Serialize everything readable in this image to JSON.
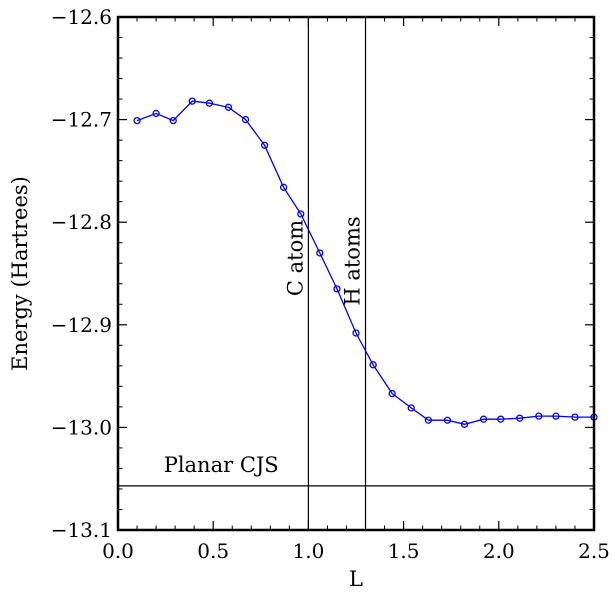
{
  "chart_data": {
    "type": "line",
    "title": "",
    "xlabel": "L",
    "ylabel": "Energy (Hartrees)",
    "xlim": [
      0.0,
      2.5
    ],
    "ylim": [
      -13.1,
      -12.6
    ],
    "x_ticks": [
      0.0,
      0.5,
      1.0,
      1.5,
      2.0,
      2.5
    ],
    "x_tick_labels": [
      "0.0",
      "0.5",
      "1.0",
      "1.5",
      "2.0",
      "2.5"
    ],
    "y_ticks": [
      -12.6,
      -12.7,
      -12.8,
      -12.9,
      -13.0,
      -13.1
    ],
    "y_tick_labels": [
      "−12.6",
      "−12.7",
      "−12.8",
      "−12.9",
      "−13.0",
      "−13.1"
    ],
    "grid": false,
    "series": [
      {
        "color": "#0000ff",
        "marker": "circle-open",
        "x": [
          0.1,
          0.2,
          0.29,
          0.39,
          0.48,
          0.58,
          0.67,
          0.77,
          0.87,
          0.96,
          1.06,
          1.15,
          1.25,
          1.34,
          1.44,
          1.54,
          1.63,
          1.73,
          1.82,
          1.92,
          2.01,
          2.11,
          2.21,
          2.3,
          2.4,
          2.5
        ],
        "y": [
          -12.701,
          -12.694,
          -12.701,
          -12.682,
          -12.684,
          -12.688,
          -12.7,
          -12.725,
          -12.766,
          -12.792,
          -12.83,
          -12.865,
          -12.908,
          -12.939,
          -12.967,
          -12.981,
          -12.993,
          -12.993,
          -12.997,
          -12.992,
          -12.992,
          -12.991,
          -12.989,
          -12.989,
          -12.99,
          -12.99
        ]
      }
    ],
    "vertical_lines": [
      {
        "x": 1.0,
        "label": "C atom"
      },
      {
        "x": 1.3,
        "label": "H atoms"
      }
    ],
    "horizontal_lines": [
      {
        "y": -13.057,
        "label": "Planar CJS"
      }
    ]
  }
}
